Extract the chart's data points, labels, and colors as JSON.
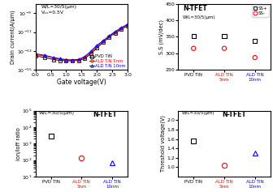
{
  "top_left": {
    "annotation": "W/L=30/5(μm)\nVₓₓ=0.5V",
    "xlabel": "Gate voltage(V)",
    "ylabel": "Drain current(A/μm)",
    "xlim": [
      0,
      3
    ],
    "ylim": [
      1e-15,
      1e-08
    ],
    "pvd_x": [
      0.0,
      0.3,
      0.6,
      0.8,
      1.0,
      1.2,
      1.4,
      1.6,
      1.8,
      2.0,
      2.2,
      2.4,
      2.6,
      2.8,
      3.0
    ],
    "pvd_y": [
      3e-14,
      2e-14,
      1.2e-14,
      1e-14,
      9e-15,
      9e-15,
      1e-14,
      1.5e-14,
      5e-14,
      2e-13,
      8e-13,
      3e-12,
      8e-12,
      2e-11,
      5e-11
    ],
    "ald5_x": [
      0.0,
      0.3,
      0.6,
      0.8,
      1.0,
      1.2,
      1.4,
      1.6,
      1.8,
      2.0,
      2.2,
      2.4,
      2.6,
      2.8,
      3.0
    ],
    "ald5_y": [
      4e-14,
      3e-14,
      1.8e-14,
      1.3e-14,
      1.1e-14,
      1e-14,
      1.2e-14,
      2e-14,
      7e-14,
      3e-13,
      1e-12,
      3.5e-12,
      1e-11,
      2.5e-11,
      6e-11
    ],
    "ald10_x": [
      0.0,
      0.3,
      0.6,
      0.8,
      1.0,
      1.2,
      1.4,
      1.6,
      1.8,
      2.0,
      2.2,
      2.4,
      2.6,
      2.8,
      3.0
    ],
    "ald10_y": [
      5e-14,
      3.5e-14,
      2e-14,
      1.5e-14,
      1.2e-14,
      1.1e-14,
      1.3e-14,
      2.5e-14,
      9e-14,
      4e-13,
      1.2e-12,
      4e-12,
      1.2e-11,
      3e-11,
      7e-11
    ],
    "pvd_color": "black",
    "ald5_color": "red",
    "ald10_color": "blue",
    "legend_pvd": "PVD TiN",
    "legend_ald5": "ALD TiN 5nm",
    "legend_ald10": "ALD TiN 10nm"
  },
  "top_right": {
    "title": "N-TFET",
    "subtitle": "W/L=30/5(μm)",
    "ylabel": "S.S (mV/dec)",
    "ylim": [
      250,
      450
    ],
    "yticks": [
      250,
      300,
      350,
      400,
      450
    ],
    "x_labels": [
      "PVD TIN",
      "ALD TIN\n5nm",
      "ALD TIN\n10nm"
    ],
    "x_colors": [
      "black",
      "red",
      "blue"
    ],
    "ss_up_values": [
      352,
      352,
      338
    ],
    "ss_down_values": [
      315,
      315,
      287
    ],
    "ss_up_color": "black",
    "ss_down_color": "red",
    "legend_ss_up": "SS+",
    "legend_ss_down": "SS-"
  },
  "bottom_left": {
    "title": "W/L=30/5(μm)",
    "title2": "N-TFET",
    "ylabel": "Ion/Ioff ratio",
    "ylim": [
      10.0,
      100000.0
    ],
    "x_labels": [
      "PVD TIN",
      "ALD TIN\n5nm",
      "ALD TIN\n10nm"
    ],
    "x_colors": [
      "black",
      "red",
      "blue"
    ],
    "values": [
      3000.0,
      130.0,
      70.0
    ],
    "markers": [
      "s",
      "o",
      "^"
    ],
    "colors": [
      "black",
      "red",
      "blue"
    ]
  },
  "bottom_right": {
    "title": "N-TFET",
    "subtitle": "W/L=30/5(μm)",
    "ylabel": "Threshold voltage(V)",
    "ylim": [
      0.8,
      2.2
    ],
    "yticks": [
      1.0,
      1.2,
      1.4,
      1.6,
      1.8,
      2.0
    ],
    "x_labels": [
      "PVD TIN",
      "ALD TIN\n5nm",
      "ALD TIN\n10nm"
    ],
    "x_colors": [
      "black",
      "red",
      "blue"
    ],
    "values": [
      1.55,
      1.05,
      1.3
    ],
    "markers": [
      "s",
      "o",
      "^"
    ],
    "colors": [
      "black",
      "red",
      "blue"
    ]
  }
}
